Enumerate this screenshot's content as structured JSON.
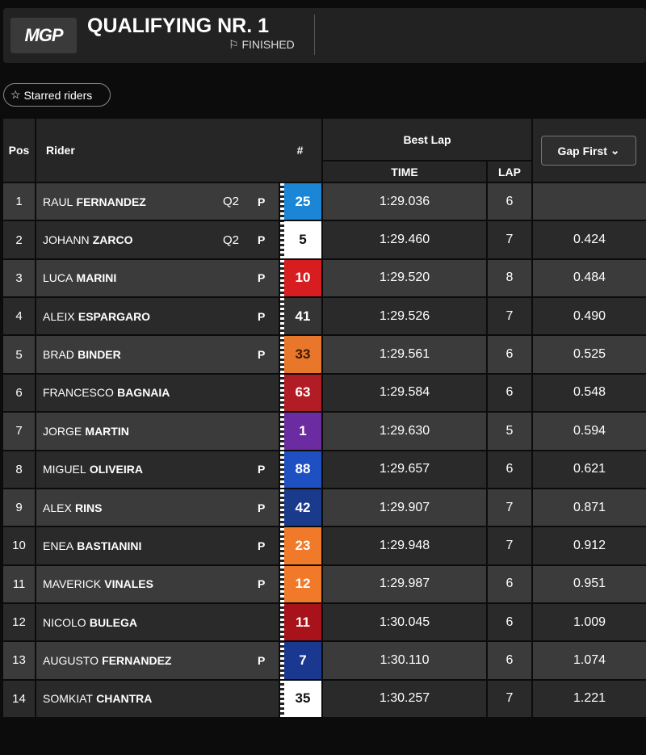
{
  "header": {
    "logo": "MGP",
    "title": "QUALIFYING NR. 1",
    "status": "FINISHED"
  },
  "filter": {
    "label": "Starred riders"
  },
  "table": {
    "columns": {
      "pos": "Pos",
      "rider": "Rider",
      "number": "#",
      "best_lap": "Best Lap",
      "time": "TIME",
      "lap": "LAP",
      "gap": "Gap First"
    },
    "rows": [
      {
        "pos": 1,
        "first": "RAUL",
        "last": "FERNANDEZ",
        "q2": "Q2",
        "p": "P",
        "number": 25,
        "color": "#1c86d6",
        "text_color": "#ffffff",
        "time": "1:29.036",
        "lap": 6
      },
      {
        "pos": 2,
        "first": "JOHANN",
        "last": "ZARCO",
        "q2": "Q2",
        "p": "P",
        "number": 5,
        "color": "#ffffff",
        "text_color": "#111111",
        "time": "1:29.460",
        "lap": 7,
        "gap": "0.424"
      },
      {
        "pos": 3,
        "first": "LUCA",
        "last": "MARINI",
        "p": "P",
        "number": 10,
        "color": "#d71d1f",
        "text_color": "#ffffff",
        "time": "1:29.520",
        "lap": 8,
        "gap": "0.484"
      },
      {
        "pos": 4,
        "first": "ALEIX",
        "last": "ESPARGARO",
        "p": "P",
        "number": 41,
        "color": "#343434",
        "text_color": "#ffffff",
        "time": "1:29.526",
        "lap": 7,
        "gap": "0.490"
      },
      {
        "pos": 5,
        "first": "BRAD",
        "last": "BINDER",
        "p": "P",
        "number": 33,
        "color": "#e8762b",
        "text_color": "#3a1a00",
        "time": "1:29.561",
        "lap": 6,
        "gap": "0.525"
      },
      {
        "pos": 6,
        "first": "FRANCESCO",
        "last": "BAGNAIA",
        "number": 63,
        "color": "#b21c24",
        "text_color": "#ffffff",
        "time": "1:29.584",
        "lap": 6,
        "gap": "0.548"
      },
      {
        "pos": 7,
        "first": "JORGE",
        "last": "MARTIN",
        "number": 1,
        "color": "#6a2ca0",
        "text_color": "#ffffff",
        "time": "1:29.630",
        "lap": 5,
        "gap": "0.594"
      },
      {
        "pos": 8,
        "first": "MIGUEL",
        "last": "OLIVEIRA",
        "p": "P",
        "number": 88,
        "color": "#1f50c2",
        "text_color": "#ffffff",
        "time": "1:29.657",
        "lap": 6,
        "gap": "0.621"
      },
      {
        "pos": 9,
        "first": "ALEX",
        "last": "RINS",
        "p": "P",
        "number": 42,
        "color": "#1a3a8c",
        "text_color": "#ffffff",
        "time": "1:29.907",
        "lap": 7,
        "gap": "0.871"
      },
      {
        "pos": 10,
        "first": "ENEA",
        "last": "BASTIANINI",
        "p": "P",
        "number": 23,
        "color": "#f07a2a",
        "text_color": "#ffffff",
        "time": "1:29.948",
        "lap": 7,
        "gap": "0.912"
      },
      {
        "pos": 11,
        "first": "MAVERICK",
        "last": "VINALES",
        "p": "P",
        "number": 12,
        "color": "#f07a2a",
        "text_color": "#ffffff",
        "time": "1:29.987",
        "lap": 6,
        "gap": "0.951"
      },
      {
        "pos": 12,
        "first": "NICOLO",
        "last": "BULEGA",
        "number": 11,
        "color": "#a8121a",
        "text_color": "#ffffff",
        "time": "1:30.045",
        "lap": 6,
        "gap": "1.009"
      },
      {
        "pos": 13,
        "first": "AUGUSTO",
        "last": "FERNANDEZ",
        "p": "P",
        "number": 7,
        "color": "#1a3890",
        "text_color": "#ffffff",
        "time": "1:30.110",
        "lap": 6,
        "gap": "1.074"
      },
      {
        "pos": 14,
        "first": "SOMKIAT",
        "last": "CHANTRA",
        "number": 35,
        "color": "#ffffff",
        "text_color": "#111111",
        "time": "1:30.257",
        "lap": 7,
        "gap": "1.221"
      }
    ]
  }
}
